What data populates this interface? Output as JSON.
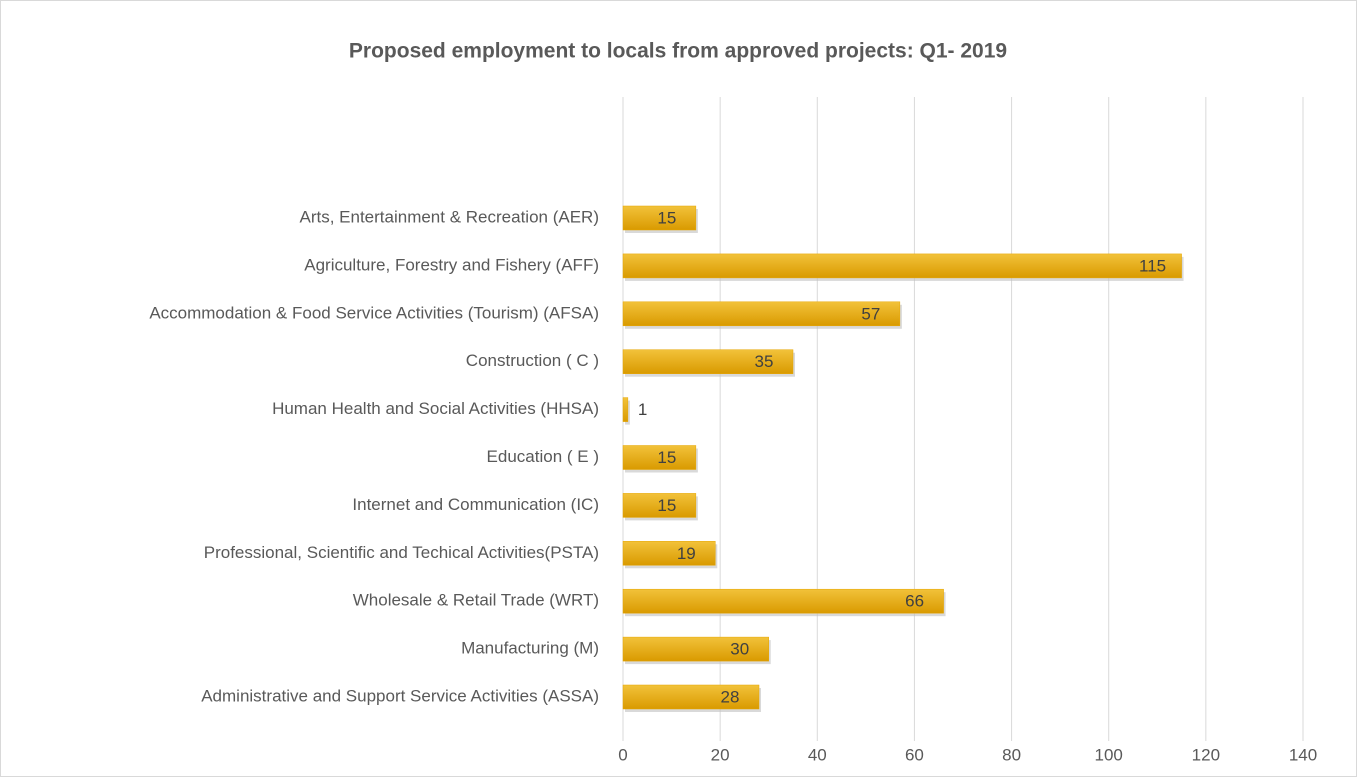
{
  "chart_data": {
    "type": "bar",
    "orientation": "horizontal",
    "title": "Proposed employment to locals from approved projects: Q1- 2019",
    "categories": [
      "Arts, Entertainment & Recreation (AER)",
      "Agriculture, Forestry and Fishery (AFF)",
      "Accommodation & Food Service Activities (Tourism) (AFSA)",
      "Construction ( C )",
      "Human Health and Social Activities (HHSA)",
      "Education ( E )",
      "Internet and Communication (IC)",
      "Professional, Scientific and Techical Activities(PSTA)",
      "Wholesale & Retail Trade (WRT)",
      "Manufacturing (M)",
      "Administrative and Support Service Activities (ASSA)"
    ],
    "values": [
      15,
      115,
      57,
      35,
      1,
      15,
      15,
      19,
      66,
      30,
      28
    ],
    "color": "#e6a600",
    "xlim": [
      0,
      140
    ],
    "xticks": [
      0,
      20,
      40,
      60,
      80,
      100,
      120,
      140
    ],
    "grid": true
  }
}
